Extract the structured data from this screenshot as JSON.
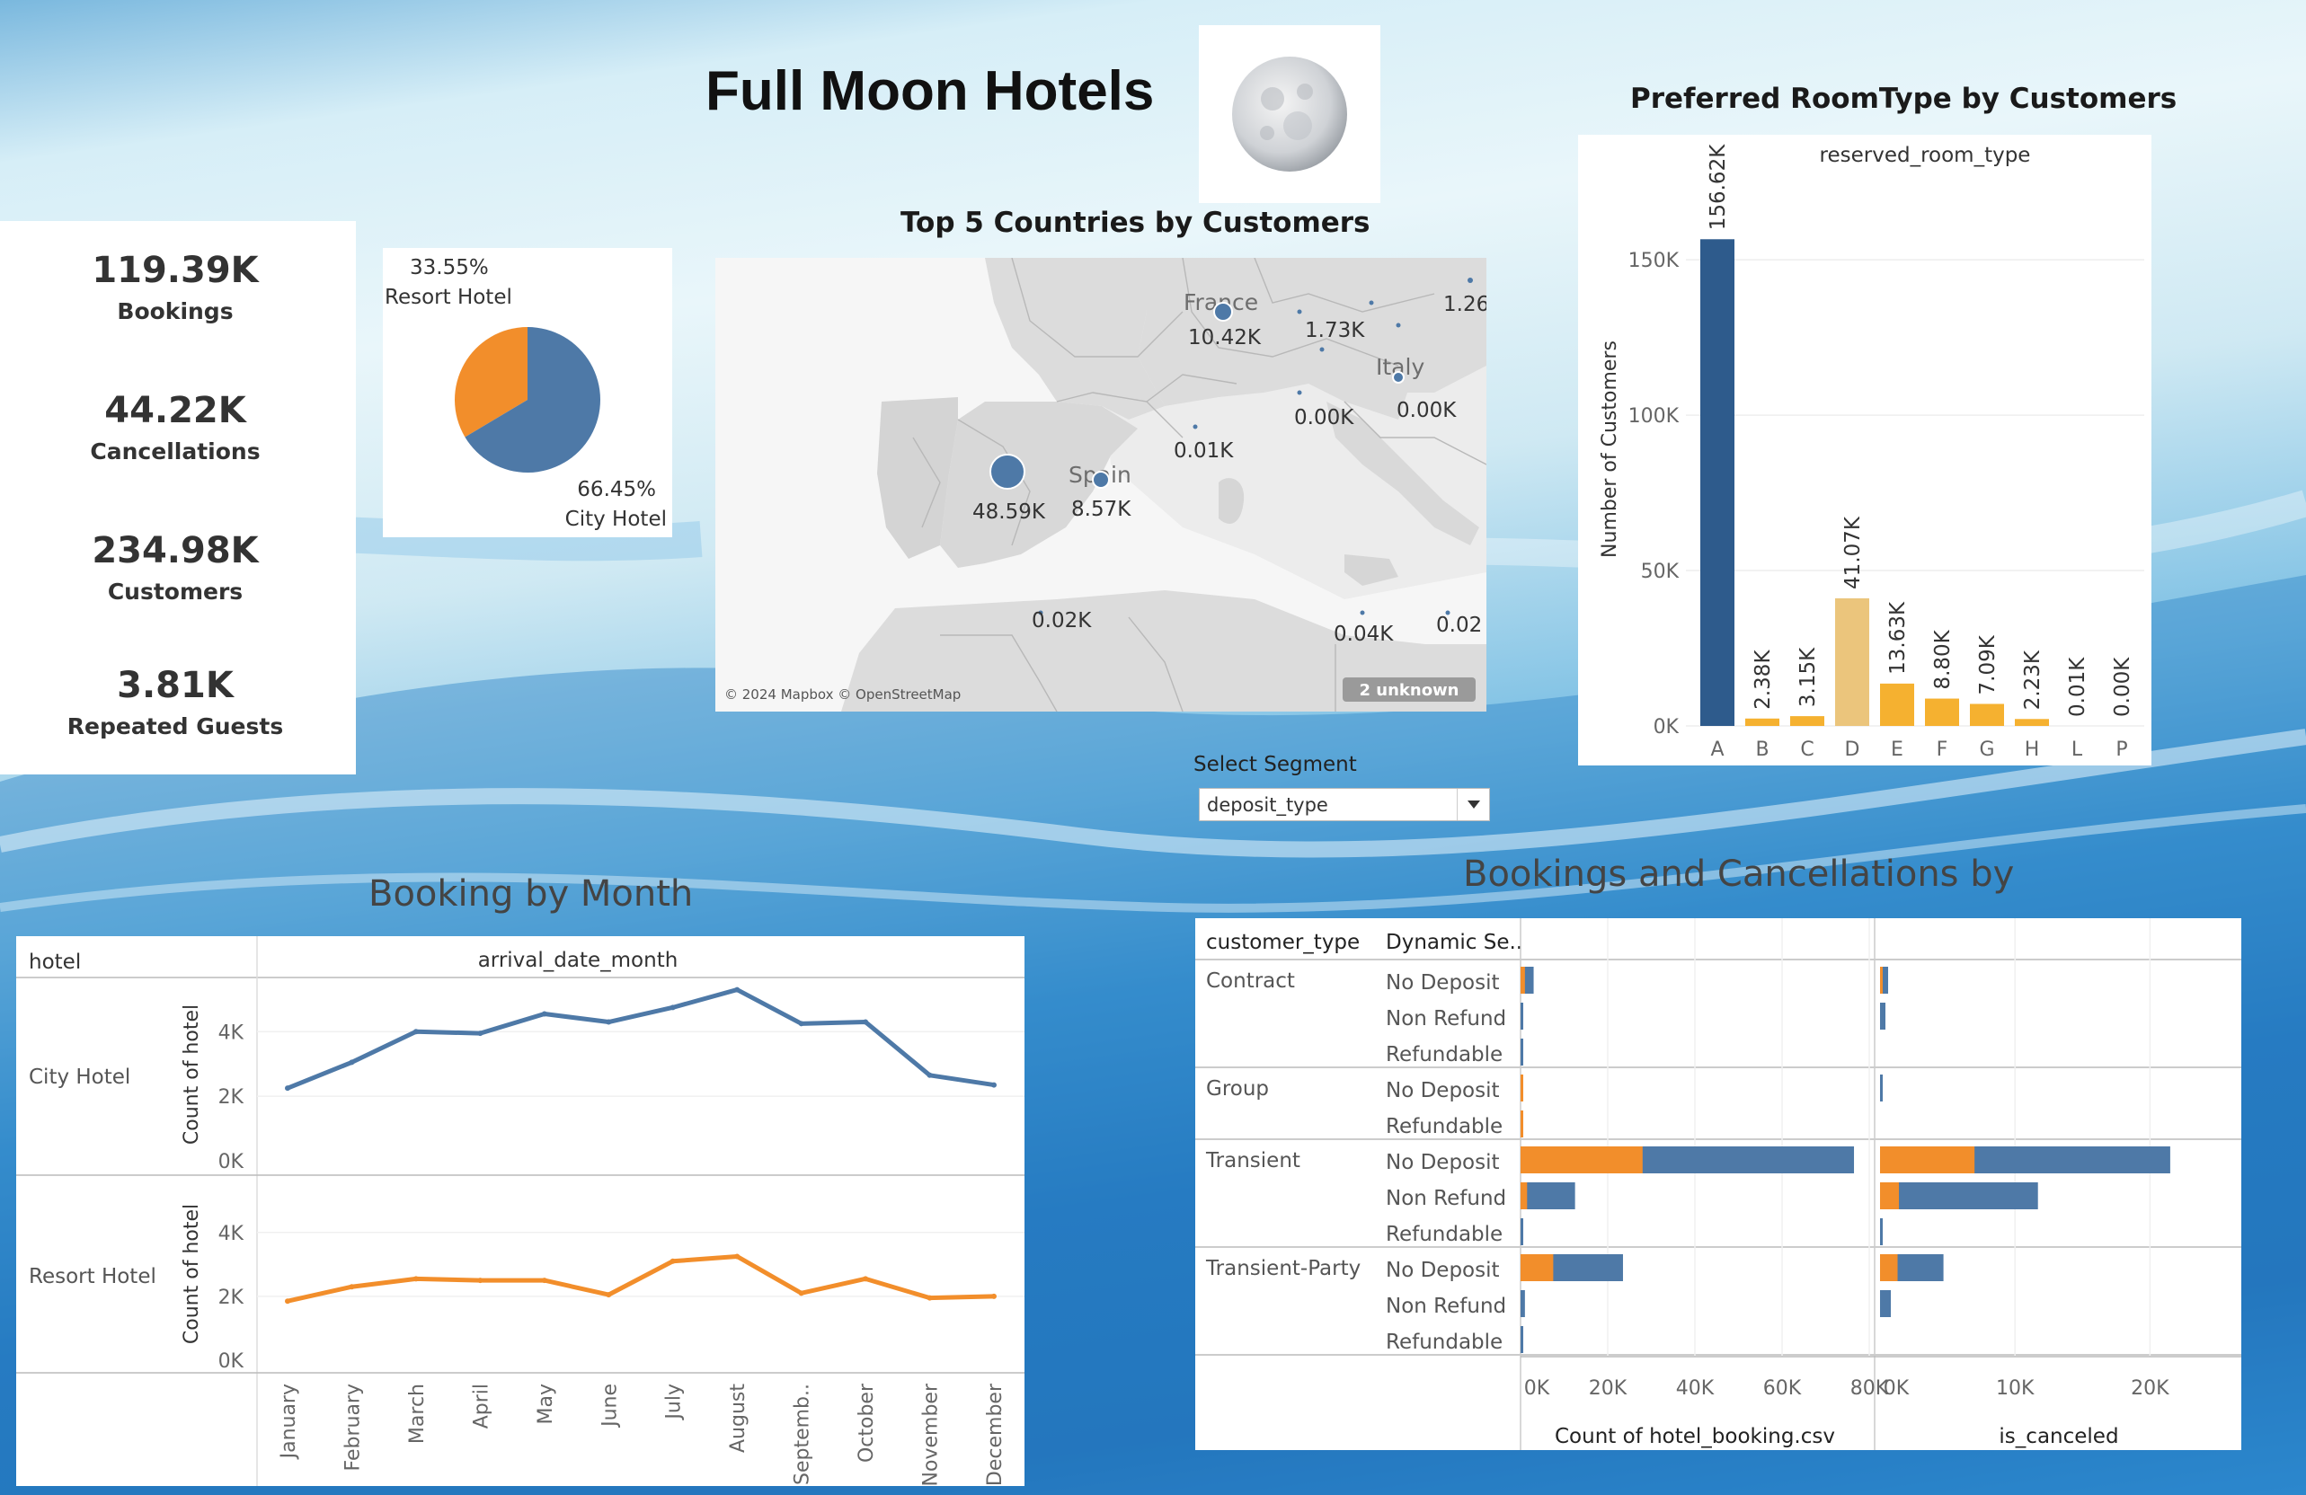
{
  "header": {
    "title": "Full Moon Hotels"
  },
  "kpis": [
    {
      "value": "119.39K",
      "label": "Bookings"
    },
    {
      "value": "44.22K",
      "label": "Cancellations"
    },
    {
      "value": "234.98K",
      "label": "Customers"
    },
    {
      "value": "3.81K",
      "label": "Repeated Guests"
    }
  ],
  "colors": {
    "blue": "#4e79a7",
    "orange": "#f28e2b",
    "dark_blue": "#2e5b8c",
    "gold": "#f5b130",
    "light_gold": "#ebc57c"
  },
  "chart_data": [
    {
      "type": "pie",
      "labels": [
        "Resort Hotel",
        "City Hotel"
      ],
      "values": [
        33.55,
        66.45
      ],
      "value_labels": [
        "33.55%",
        "66.45%"
      ]
    },
    {
      "type": "scatter",
      "title": "Top 5 Countries by Customers",
      "points": [
        {
          "label": "48.59K",
          "value": 48.59
        },
        {
          "label": "10.42K",
          "value": 10.42
        },
        {
          "label": "8.57K",
          "value": 8.57
        },
        {
          "label": "1.73K",
          "value": 1.73
        },
        {
          "label": "1.26",
          "value": 1.26
        },
        {
          "label": "0.01K",
          "value": 0.01
        },
        {
          "label": "0.00K",
          "value": 0.0
        },
        {
          "label": "0.00K",
          "value": 0.0
        },
        {
          "label": "0.02K",
          "value": 0.02
        },
        {
          "label": "0.04K",
          "value": 0.04
        },
        {
          "label": "0.02",
          "value": 0.02
        }
      ],
      "place_names": [
        "France",
        "Italy",
        "Spain"
      ],
      "attribution": "© 2024 Mapbox © OpenStreetMap",
      "unknown_badge": "2 unknown"
    },
    {
      "type": "bar",
      "title": "Preferred RoomType by Customers",
      "header": "reserved_room_type",
      "ylabel": "Number of Customers",
      "categories": [
        "A",
        "B",
        "C",
        "D",
        "E",
        "F",
        "G",
        "H",
        "L",
        "P"
      ],
      "values": [
        156.62,
        2.38,
        3.15,
        41.07,
        13.63,
        8.8,
        7.09,
        2.23,
        0.01,
        0.0
      ],
      "value_labels": [
        "156.62K",
        "2.38K",
        "3.15K",
        "41.07K",
        "13.63K",
        "8.80K",
        "7.09K",
        "2.23K",
        "0.01K",
        "0.00K"
      ],
      "ylim": [
        0,
        170
      ],
      "yticks": [
        0,
        50,
        100,
        150
      ],
      "ytick_labels": [
        "0K",
        "50K",
        "100K",
        "150K"
      ]
    },
    {
      "type": "line",
      "title": "Booking by Month",
      "row_header": "hotel",
      "col_header": "arrival_date_month",
      "ylabel": "Count of hotel",
      "categories": [
        "January",
        "February",
        "March",
        "April",
        "May",
        "June",
        "July",
        "August",
        "Septemb..",
        "October",
        "November",
        "December"
      ],
      "yticks": [
        0,
        2,
        4
      ],
      "ytick_labels": [
        "0K",
        "2K",
        "4K"
      ],
      "ylim": [
        0,
        5.4
      ],
      "series": [
        {
          "name": "City Hotel",
          "values": [
            2.25,
            3.05,
            4.0,
            3.95,
            4.55,
            4.3,
            4.75,
            5.3,
            4.25,
            4.3,
            2.65,
            2.35
          ]
        },
        {
          "name": "Resort Hotel",
          "values": [
            1.85,
            2.3,
            2.55,
            2.5,
            2.5,
            2.05,
            3.1,
            3.25,
            2.1,
            2.55,
            1.95,
            2.0
          ]
        }
      ]
    },
    {
      "type": "bar",
      "title": "Bookings and Cancellations by",
      "row_headers": [
        "customer_type",
        "Dynamic Se.."
      ],
      "rows": [
        {
          "group": "Contract",
          "sub": "No Deposit",
          "count_orange": 1.0,
          "count_total": 3.0,
          "canc_orange": 0.2,
          "canc_total": 0.6
        },
        {
          "group": "",
          "sub": "Non Refund",
          "count_orange": 0.0,
          "count_total": 0.3,
          "canc_orange": 0.0,
          "canc_total": 0.4
        },
        {
          "group": "",
          "sub": "Refundable",
          "count_orange": 0.0,
          "count_total": 0.2,
          "canc_orange": 0.0,
          "canc_total": 0.0
        },
        {
          "group": "Group",
          "sub": "No Deposit",
          "count_orange": 0.2,
          "count_total": 0.6,
          "canc_orange": 0.0,
          "canc_total": 0.05
        },
        {
          "group": "",
          "sub": "Refundable",
          "count_orange": 0.1,
          "count_total": 0.15,
          "canc_orange": 0.0,
          "canc_total": 0.0
        },
        {
          "group": "Transient",
          "sub": "No Deposit",
          "count_orange": 28.0,
          "count_total": 76.5,
          "canc_orange": 7.0,
          "canc_total": 21.5
        },
        {
          "group": "",
          "sub": "Non Refund",
          "count_orange": 1.5,
          "count_total": 12.5,
          "canc_orange": 1.4,
          "canc_total": 11.7
        },
        {
          "group": "",
          "sub": "Refundable",
          "count_orange": 0.0,
          "count_total": 0.3,
          "canc_orange": 0.0,
          "canc_total": 0.05
        },
        {
          "group": "Transient-Party",
          "sub": "No Deposit",
          "count_orange": 7.5,
          "count_total": 23.5,
          "canc_orange": 1.3,
          "canc_total": 4.7
        },
        {
          "group": "",
          "sub": "Non Refund",
          "count_orange": 0.0,
          "count_total": 1.0,
          "canc_orange": 0.0,
          "canc_total": 0.8
        },
        {
          "group": "",
          "sub": "Refundable",
          "count_orange": 0.0,
          "count_total": 0.3,
          "canc_orange": 0.0,
          "canc_total": 0.0
        }
      ],
      "count_axis": {
        "label": "Count of hotel_booking.csv",
        "ticks": [
          0,
          20,
          40,
          60,
          80
        ],
        "tick_labels": [
          "0K",
          "20K",
          "40K",
          "60K",
          "80K"
        ],
        "max": 80
      },
      "canceled_axis": {
        "label": "is_canceled",
        "ticks": [
          0,
          10,
          20
        ],
        "tick_labels": [
          "0K",
          "10K",
          "20K"
        ],
        "max": 26.5
      }
    }
  ],
  "segment_filter": {
    "label": "Select Segment",
    "selected": "deposit_type"
  }
}
